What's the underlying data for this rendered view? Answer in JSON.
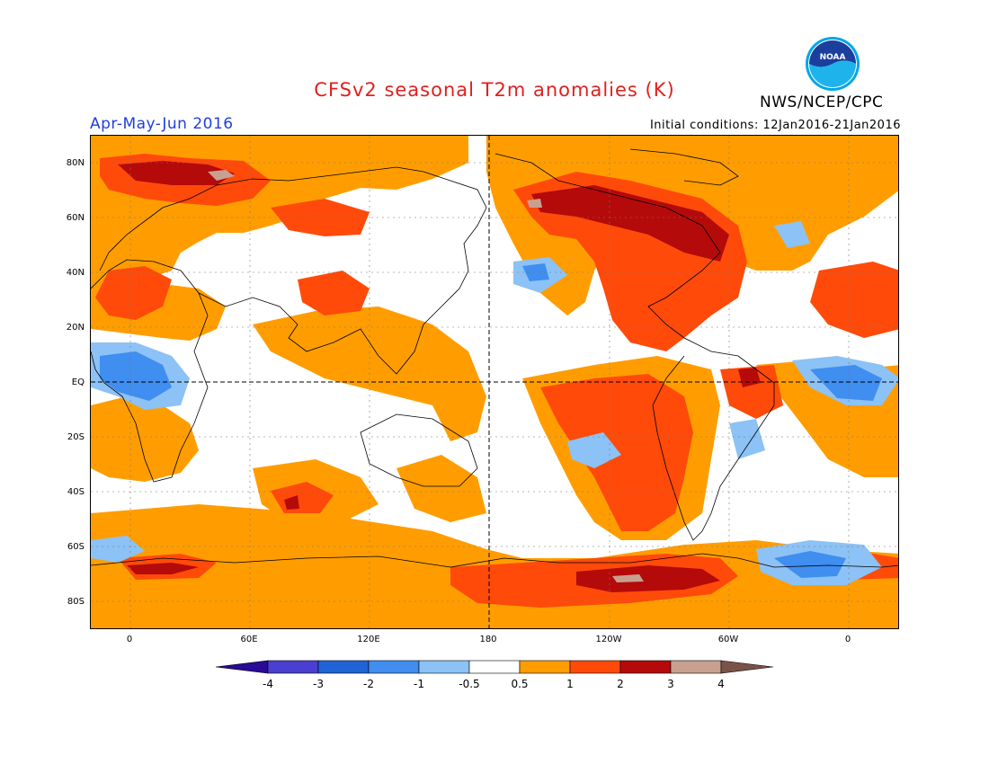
{
  "title": "CFSv2 seasonal T2m anomalies (K)",
  "organization": "NWS/NCEP/CPC",
  "logo_text": "NOAA",
  "season": "Apr-May-Jun 2016",
  "initial_conditions": "Initial conditions: 12Jan2016-21Jan2016",
  "lat_labels": [
    "80N",
    "60N",
    "40N",
    "20N",
    "EQ",
    "20S",
    "40S",
    "60S",
    "80S"
  ],
  "lon_labels": [
    "0",
    "60E",
    "120E",
    "180",
    "120W",
    "60W",
    "0"
  ],
  "colorbar": {
    "labels": [
      "-4",
      "-3",
      "-2",
      "-1",
      "-0.5",
      "0.5",
      "1",
      "2",
      "3",
      "4"
    ],
    "colors": [
      "#2a0a96",
      "#4a3fd0",
      "#1f63d6",
      "#3f8ef0",
      "#8cc2f5",
      "#ffffff",
      "#ff9d00",
      "#ff4a0a",
      "#b50a0a",
      "#c9a090",
      "#7a5348"
    ]
  },
  "palette": {
    "light_orange": "#ff9d00",
    "orange_red": "#ff4a0a",
    "dark_red": "#b50a0a",
    "tan": "#c9a090",
    "light_blue": "#8cc2f5",
    "mid_blue": "#3f8ef0",
    "title_red": "#e0201e",
    "season_blue": "#1f3fe0"
  }
}
